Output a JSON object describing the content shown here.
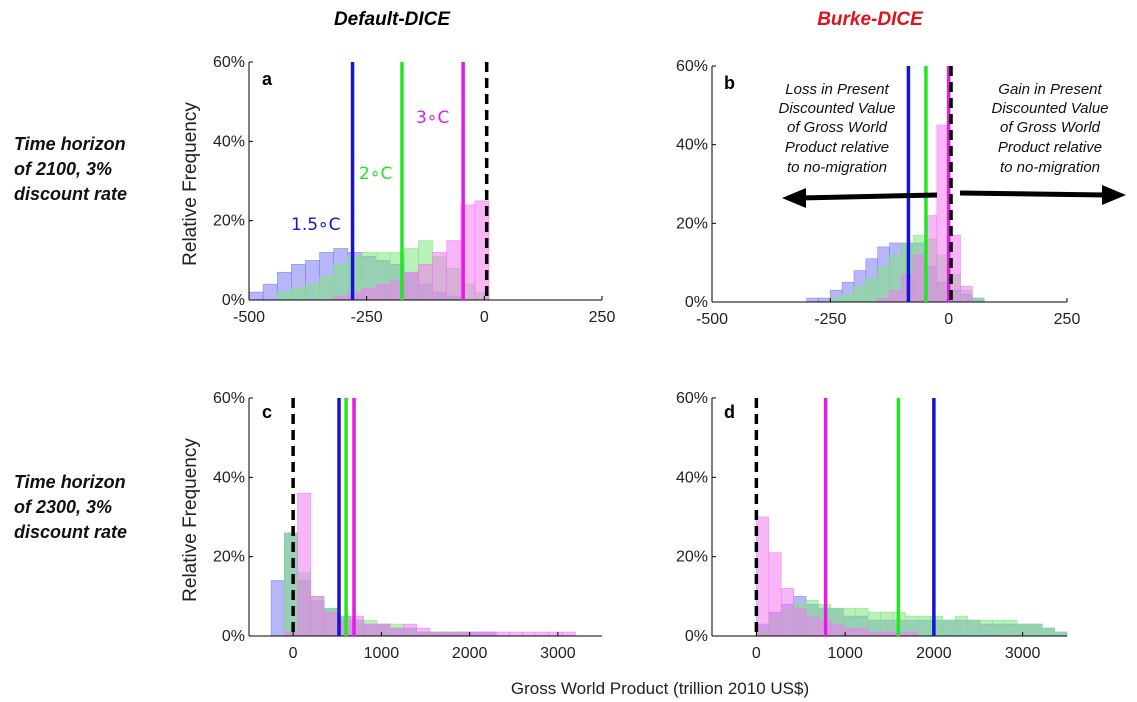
{
  "columns": {
    "left": "Default-DICE",
    "right": "Burke-DICE"
  },
  "colors": {
    "left_title": "#000000",
    "right_title": "#e0131b",
    "blue": "#1414d2",
    "green": "#22e622",
    "magenta": "#e619e6",
    "blue_fill": "#7b7bf0",
    "green_fill": "#7fe67f",
    "magenta_fill": "#f27af2",
    "zero_line": "#000000"
  },
  "rows": {
    "top": [
      "Time horizon",
      "of 2100, 3%",
      "discount rate"
    ],
    "bottom": [
      "Time horizon",
      "of 2300, 3%",
      "discount rate"
    ]
  },
  "ylabel": "Relative Frequency",
  "xlabel": "Gross World Product (trillion 2010 US$)",
  "annotations": {
    "loss": [
      "Loss in Present",
      "Discounted Value",
      "of Gross World",
      "Product relative",
      "to no-migration"
    ],
    "gain": [
      "Gain in Present",
      "Discounted Value",
      "of Gross World",
      "Product relative",
      "to no-migration"
    ]
  },
  "chart_data": [
    {
      "panel": "a",
      "type": "histogram",
      "xlim": [
        -500,
        250
      ],
      "xticks": [
        -500,
        -250,
        0,
        250
      ],
      "xtick_labels": [
        "-500",
        "-250",
        "0",
        "250"
      ],
      "ylim": [
        0,
        60
      ],
      "yticks": [
        0,
        20,
        40,
        60
      ],
      "ytick_labels": [
        "0%",
        "20%",
        "40%",
        "60%"
      ],
      "bin_start": -500,
      "bin_width": 30,
      "series": [
        {
          "name": "1.5°C",
          "color": "blue",
          "values": [
            2,
            4,
            7,
            9,
            10,
            12,
            13,
            12,
            11,
            10,
            9,
            7,
            4,
            2,
            1,
            0,
            0,
            0,
            0
          ]
        },
        {
          "name": "2°C",
          "color": "green",
          "values": [
            0,
            0,
            2,
            3,
            4,
            6,
            9,
            11,
            12,
            12,
            12,
            13,
            15,
            11,
            8,
            4,
            2,
            0,
            0
          ]
        },
        {
          "name": "3°C",
          "color": "magenta",
          "values": [
            0,
            0,
            0,
            0,
            0,
            0,
            1,
            2,
            3,
            4,
            5,
            7,
            9,
            12,
            15,
            24,
            25,
            0,
            0
          ]
        }
      ],
      "vlines": [
        {
          "x": -280,
          "color": "blue",
          "label": "1.5∘C"
        },
        {
          "x": -175,
          "color": "green",
          "label": "2∘C"
        },
        {
          "x": -45,
          "color": "magenta",
          "label": "3∘C"
        },
        {
          "x": 5,
          "color": "zero_line",
          "dashed": true
        }
      ]
    },
    {
      "panel": "b",
      "type": "histogram",
      "xlim": [
        -500,
        250
      ],
      "xticks": [
        -500,
        -250,
        0,
        250
      ],
      "xtick_labels": [
        "-500",
        "-250",
        "0",
        "250"
      ],
      "ylim": [
        0,
        60
      ],
      "yticks": [
        0,
        20,
        40,
        60
      ],
      "ytick_labels": [
        "0%",
        "20%",
        "40%",
        "60%"
      ],
      "bin_start": -500,
      "bin_width": 25,
      "series": [
        {
          "name": "1.5°C",
          "color": "blue",
          "values": [
            0,
            0,
            0,
            0,
            0,
            0,
            0,
            0,
            1,
            1,
            3,
            5,
            8,
            11,
            14,
            15,
            15,
            15,
            9,
            5,
            3,
            2,
            1,
            0,
            0,
            0,
            0,
            0,
            0,
            0
          ]
        },
        {
          "name": "2°C",
          "color": "green",
          "values": [
            0,
            0,
            0,
            0,
            0,
            0,
            0,
            0,
            0,
            0,
            1,
            2,
            4,
            6,
            9,
            12,
            15,
            17,
            16,
            12,
            7,
            3,
            1,
            0,
            0,
            0,
            0,
            0,
            0,
            0
          ]
        },
        {
          "name": "3°C",
          "color": "magenta",
          "values": [
            0,
            0,
            0,
            0,
            0,
            0,
            0,
            0,
            0,
            0,
            0,
            0,
            0,
            0,
            1,
            3,
            7,
            12,
            22,
            45,
            17,
            4,
            0,
            0,
            0,
            0,
            0,
            0,
            0,
            0
          ]
        }
      ],
      "vlines": [
        {
          "x": -85,
          "color": "blue"
        },
        {
          "x": -48,
          "color": "green"
        },
        {
          "x": 0,
          "color": "magenta"
        },
        {
          "x": 5,
          "color": "zero_line",
          "dashed": true
        }
      ]
    },
    {
      "panel": "c",
      "type": "histogram",
      "xlim": [
        -500,
        3500
      ],
      "xticks": [
        0,
        1000,
        2000,
        3000
      ],
      "xtick_labels": [
        "0",
        "1000",
        "2000",
        "3000"
      ],
      "ylim": [
        0,
        60
      ],
      "yticks": [
        0,
        20,
        40,
        60
      ],
      "ytick_labels": [
        "0%",
        "20%",
        "40%",
        "60%"
      ],
      "bin_start": -250,
      "bin_width": 150,
      "series": [
        {
          "name": "1.5°C",
          "color": "blue",
          "values": [
            14,
            26,
            14,
            9,
            7,
            5,
            4,
            3,
            3,
            2,
            2,
            1,
            1,
            1,
            1,
            1,
            1,
            0,
            0,
            0,
            0,
            0,
            0,
            0,
            0
          ]
        },
        {
          "name": "2°C",
          "color": "green",
          "values": [
            0,
            26,
            16,
            10,
            7,
            5,
            4,
            4,
            3,
            3,
            2,
            1,
            1,
            1,
            1,
            0,
            0,
            0,
            0,
            0,
            0,
            0,
            0,
            0,
            0
          ]
        },
        {
          "name": "3°C",
          "color": "magenta",
          "values": [
            0,
            1,
            36,
            10,
            6,
            4,
            5,
            3,
            3,
            2,
            3,
            2,
            1,
            1,
            1,
            1,
            1,
            1,
            1,
            1,
            1,
            1,
            1,
            0,
            0
          ]
        }
      ],
      "vlines": [
        {
          "x": 0,
          "color": "zero_line",
          "dashed": true
        },
        {
          "x": 520,
          "color": "blue"
        },
        {
          "x": 600,
          "color": "green"
        },
        {
          "x": 690,
          "color": "magenta"
        }
      ]
    },
    {
      "panel": "d",
      "type": "histogram",
      "xlim": [
        -500,
        3500
      ],
      "xticks": [
        0,
        1000,
        2000,
        3000
      ],
      "xtick_labels": [
        "0",
        "1000",
        "2000",
        "3000"
      ],
      "ylim": [
        0,
        60
      ],
      "yticks": [
        0,
        20,
        40,
        60
      ],
      "ytick_labels": [
        "0%",
        "20%",
        "40%",
        "60%"
      ],
      "bin_start": 0,
      "bin_width": 140,
      "series": [
        {
          "name": "1.5°C",
          "color": "blue",
          "values": [
            3,
            6,
            8,
            10,
            8,
            7,
            7,
            5,
            5,
            4,
            4,
            4,
            4,
            4,
            4,
            4,
            4,
            4,
            3,
            3,
            3,
            3,
            3,
            2,
            1
          ]
        },
        {
          "name": "2°C",
          "color": "green",
          "values": [
            2,
            5,
            7,
            8,
            9,
            8,
            7,
            7,
            7,
            6,
            6,
            6,
            5,
            5,
            5,
            4,
            5,
            4,
            4,
            4,
            4,
            3,
            3,
            2,
            1
          ]
        },
        {
          "name": "3°C",
          "color": "magenta",
          "values": [
            30,
            21,
            12,
            7,
            5,
            4,
            3,
            2,
            2,
            1,
            1,
            1,
            1,
            0,
            0,
            0,
            0,
            0,
            0,
            0,
            0,
            0,
            0,
            0,
            0
          ]
        }
      ],
      "vlines": [
        {
          "x": 0,
          "color": "zero_line",
          "dashed": true
        },
        {
          "x": 780,
          "color": "magenta"
        },
        {
          "x": 1600,
          "color": "green"
        },
        {
          "x": 2000,
          "color": "blue"
        }
      ]
    }
  ]
}
